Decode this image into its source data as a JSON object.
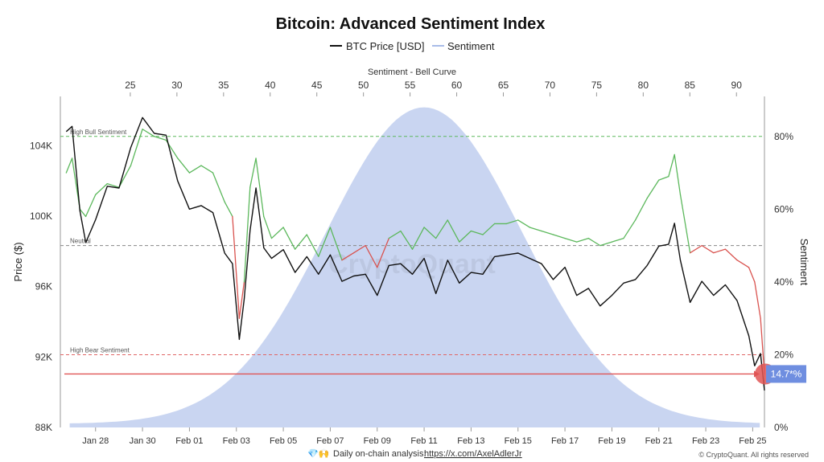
{
  "chart_data": {
    "type": "line",
    "title": "Bitcoin: Advanced Sentiment Index",
    "legend": [
      {
        "label": "BTC Price [USD]",
        "color": "#111111",
        "kind": "line"
      },
      {
        "label": "Sentiment",
        "color": "#a9bce8",
        "kind": "line"
      }
    ],
    "legend_position": "top-center",
    "x_axis": {
      "type": "date",
      "ticks": [
        "Jan 28",
        "Jan 30",
        "Feb 01",
        "Feb 03",
        "Feb 05",
        "Feb 07",
        "Feb 09",
        "Feb 11",
        "Feb 13",
        "Feb 15",
        "Feb 17",
        "Feb 19",
        "Feb 21",
        "Feb 23",
        "Feb 25"
      ],
      "range": [
        "2025-01-26T12:00",
        "2025-02-25T12:00"
      ]
    },
    "top_axis": {
      "title": "Sentiment - Bell Curve",
      "ticks": [
        25,
        30,
        35,
        40,
        45,
        50,
        55,
        60,
        65,
        70,
        75,
        80,
        85,
        90
      ],
      "range": [
        17.5,
        93
      ]
    },
    "y_left": {
      "title": "Price ($)",
      "ticks": [
        "88K",
        "92K",
        "96K",
        "100K",
        "104K"
      ],
      "tick_values": [
        88000,
        92000,
        96000,
        100000,
        104000
      ],
      "range": [
        88000,
        106800
      ]
    },
    "y_right": {
      "title": "Sentiment",
      "ticks": [
        "0%",
        "20%",
        "40%",
        "60%",
        "80%"
      ],
      "tick_values": [
        0,
        20,
        40,
        60,
        80
      ],
      "range": [
        0,
        91
      ]
    },
    "grid": false,
    "reference_lines": [
      {
        "label": "High Bull Sentiment",
        "value": 80,
        "color": "#5cb85c"
      },
      {
        "label": "Neutral",
        "value": 50,
        "color": "#888888"
      },
      {
        "label": "High Bear Sentiment",
        "value": 20,
        "color": "#e06666"
      }
    ],
    "bell_curve": {
      "color": "#c3d0f0",
      "peak_x": 56.5,
      "peak_value": 88,
      "spread": 10.5,
      "baseline": 1
    },
    "btc_price": {
      "name": "BTC Price [USD]",
      "color": "#111111",
      "x": [
        "2025-01-26T18:00",
        "2025-01-27T00:00",
        "2025-01-27T08:00",
        "2025-01-27T14:00",
        "2025-01-28T00:00",
        "2025-01-28T12:00",
        "2025-01-29T00:00",
        "2025-01-29T12:00",
        "2025-01-30T00:00",
        "2025-01-30T12:00",
        "2025-01-31T00:00",
        "2025-01-31T12:00",
        "2025-02-01T00:00",
        "2025-02-01T12:00",
        "2025-02-02T00:00",
        "2025-02-02T12:00",
        "2025-02-02T20:00",
        "2025-02-03T03:00",
        "2025-02-03T08:00",
        "2025-02-03T14:00",
        "2025-02-03T20:00",
        "2025-02-04T04:00",
        "2025-02-04T12:00",
        "2025-02-05T00:00",
        "2025-02-05T12:00",
        "2025-02-06T00:00",
        "2025-02-06T12:00",
        "2025-02-07T00:00",
        "2025-02-07T12:00",
        "2025-02-08T00:00",
        "2025-02-08T12:00",
        "2025-02-09T00:00",
        "2025-02-09T12:00",
        "2025-02-10T00:00",
        "2025-02-10T12:00",
        "2025-02-11T00:00",
        "2025-02-11T12:00",
        "2025-02-12T00:00",
        "2025-02-12T12:00",
        "2025-02-13T00:00",
        "2025-02-13T12:00",
        "2025-02-14T00:00",
        "2025-02-14T12:00",
        "2025-02-15T00:00",
        "2025-02-15T12:00",
        "2025-02-16T00:00",
        "2025-02-16T12:00",
        "2025-02-17T00:00",
        "2025-02-17T12:00",
        "2025-02-18T00:00",
        "2025-02-18T12:00",
        "2025-02-19T00:00",
        "2025-02-19T12:00",
        "2025-02-20T00:00",
        "2025-02-20T12:00",
        "2025-02-21T00:00",
        "2025-02-21T10:00",
        "2025-02-21T16:00",
        "2025-02-21T22:00",
        "2025-02-22T08:00",
        "2025-02-22T20:00",
        "2025-02-23T08:00",
        "2025-02-23T20:00",
        "2025-02-24T08:00",
        "2025-02-24T20:00",
        "2025-02-25T02:00",
        "2025-02-25T08:00",
        "2025-02-25T12:00"
      ],
      "y": [
        104800,
        105100,
        100300,
        98500,
        99800,
        101700,
        101600,
        103900,
        105600,
        104700,
        104600,
        102000,
        100400,
        100600,
        100200,
        97900,
        97300,
        93000,
        95300,
        99200,
        101600,
        98200,
        97600,
        98100,
        96800,
        97700,
        96700,
        97800,
        96300,
        96600,
        96700,
        95500,
        97200,
        97300,
        96700,
        97600,
        95600,
        97500,
        96200,
        96800,
        96700,
        97700,
        97800,
        97900,
        97600,
        97300,
        96400,
        97100,
        95500,
        95900,
        94900,
        95500,
        96200,
        96400,
        97200,
        98300,
        98400,
        99600,
        97500,
        95100,
        96300,
        95500,
        96100,
        95200,
        93200,
        91500,
        92200,
        90100
      ]
    },
    "sentiment": {
      "name": "Sentiment",
      "x": [
        "2025-01-26T18:00",
        "2025-01-27T00:00",
        "2025-01-27T08:00",
        "2025-01-27T14:00",
        "2025-01-28T00:00",
        "2025-01-28T12:00",
        "2025-01-29T00:00",
        "2025-01-29T12:00",
        "2025-01-30T00:00",
        "2025-01-30T12:00",
        "2025-01-31T00:00",
        "2025-01-31T12:00",
        "2025-02-01T00:00",
        "2025-02-01T12:00",
        "2025-02-02T00:00",
        "2025-02-02T12:00",
        "2025-02-02T20:00",
        "2025-02-03T03:00",
        "2025-02-03T08:00",
        "2025-02-03T14:00",
        "2025-02-03T20:00",
        "2025-02-04T04:00",
        "2025-02-04T12:00",
        "2025-02-05T00:00",
        "2025-02-05T12:00",
        "2025-02-06T00:00",
        "2025-02-06T12:00",
        "2025-02-07T00:00",
        "2025-02-07T12:00",
        "2025-02-08T00:00",
        "2025-02-08T12:00",
        "2025-02-09T00:00",
        "2025-02-09T12:00",
        "2025-02-10T00:00",
        "2025-02-10T12:00",
        "2025-02-11T00:00",
        "2025-02-11T12:00",
        "2025-02-12T00:00",
        "2025-02-12T12:00",
        "2025-02-13T00:00",
        "2025-02-13T12:00",
        "2025-02-14T00:00",
        "2025-02-14T12:00",
        "2025-02-15T00:00",
        "2025-02-15T12:00",
        "2025-02-16T00:00",
        "2025-02-16T12:00",
        "2025-02-17T00:00",
        "2025-02-17T12:00",
        "2025-02-18T00:00",
        "2025-02-18T12:00",
        "2025-02-19T00:00",
        "2025-02-19T12:00",
        "2025-02-20T00:00",
        "2025-02-20T12:00",
        "2025-02-21T00:00",
        "2025-02-21T10:00",
        "2025-02-21T16:00",
        "2025-02-21T22:00",
        "2025-02-22T08:00",
        "2025-02-22T20:00",
        "2025-02-23T08:00",
        "2025-02-23T20:00",
        "2025-02-24T08:00",
        "2025-02-24T20:00",
        "2025-02-25T02:00",
        "2025-02-25T08:00",
        "2025-02-25T12:00"
      ],
      "y": [
        70,
        74,
        60,
        58,
        64,
        67,
        66,
        72,
        82,
        80,
        79,
        74,
        70,
        72,
        70,
        62,
        58,
        30,
        40,
        66,
        74,
        58,
        52,
        55,
        49,
        53,
        47,
        55,
        46,
        48,
        50,
        44,
        52,
        54,
        49,
        55,
        52,
        57,
        51,
        54,
        53,
        56,
        56,
        57,
        55,
        54,
        53,
        52,
        51,
        52,
        50,
        51,
        52,
        57,
        63,
        68,
        69,
        75,
        64,
        48,
        50,
        48,
        49,
        46,
        44,
        40,
        30,
        14.7
      ],
      "colors": {
        "bull": "#5cb85c",
        "bear": "#d9534f"
      },
      "threshold": 50
    },
    "current_marker": {
      "value": 14.7,
      "label": "14.7*%",
      "color": "#e05555",
      "badge_color": "#6f8ee0"
    }
  },
  "footer": {
    "prefix": "Daily on-chain analysis:",
    "link": "https://x.com/AxelAdlerJr",
    "icons": "💎🙌",
    "credit": "© CryptoQuant. All rights reserved"
  },
  "watermark": "CryptoQuant"
}
